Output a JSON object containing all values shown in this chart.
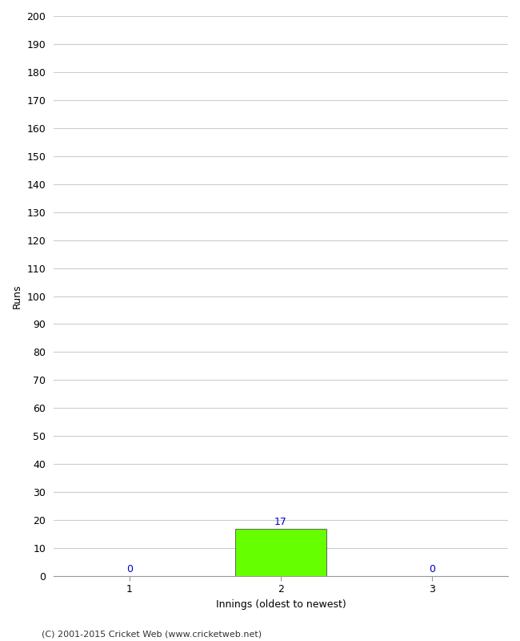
{
  "categories": [
    1,
    2,
    3
  ],
  "values": [
    0,
    17,
    0
  ],
  "xlabel": "Innings (oldest to newest)",
  "ylabel": "Runs",
  "ylim": [
    0,
    200
  ],
  "yticks": [
    0,
    10,
    20,
    30,
    40,
    50,
    60,
    70,
    80,
    90,
    100,
    110,
    120,
    130,
    140,
    150,
    160,
    170,
    180,
    190,
    200
  ],
  "xticks": [
    1,
    2,
    3
  ],
  "value_labels": [
    "0",
    "17",
    "0"
  ],
  "value_label_color": "#0000cc",
  "bar_color_nonzero": "#66ff00",
  "bar_color_zero": "#cccccc",
  "footer": "(C) 2001-2015 Cricket Web (www.cricketweb.net)",
  "background_color": "#ffffff",
  "grid_color": "#cccccc",
  "bar_width": 0.6,
  "label_fontsize": 9,
  "axis_fontsize": 9,
  "ylabel_fontsize": 9,
  "xlabel_fontsize": 9,
  "footer_fontsize": 8
}
